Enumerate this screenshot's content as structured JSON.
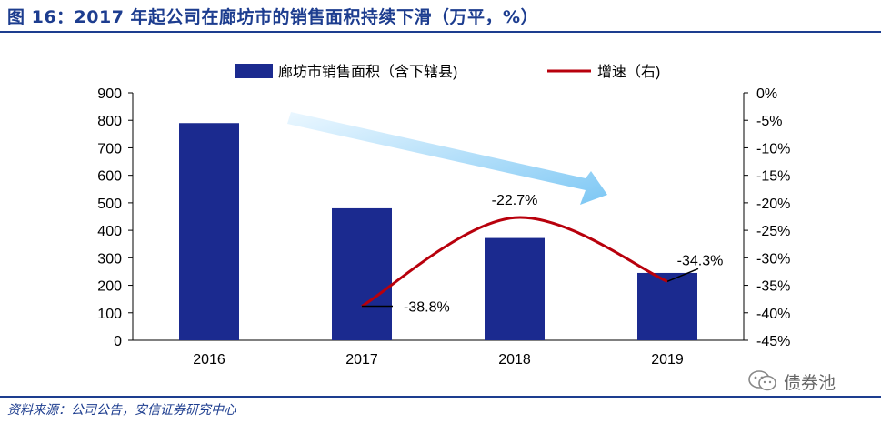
{
  "title": "图 16：2017 年起公司在廊坊市的销售面积持续下滑（万平，%）",
  "source": "资料来源：公司公告，安信证券研究中心",
  "watermark": {
    "text": "债券池",
    "icon": "wechat-icon"
  },
  "colors": {
    "bar": "#1b2a8f",
    "line": "#b8000c",
    "trend_arrow": "#8fcff5",
    "title": "#1d3d8f"
  },
  "chart_data": {
    "type": "bar",
    "categories": [
      "2016",
      "2017",
      "2018",
      "2019"
    ],
    "series": [
      {
        "name": "廊坊市销售面积（含下辖县)",
        "type": "bar",
        "axis": "left",
        "values": [
          790,
          480,
          372,
          245
        ]
      },
      {
        "name": "增速（右)",
        "type": "line",
        "axis": "right",
        "values": [
          null,
          -38.8,
          -22.7,
          -34.3
        ]
      }
    ],
    "data_labels": [
      "-38.8%",
      "-22.7%",
      "-34.3%"
    ],
    "y_left": {
      "min": 0,
      "max": 900,
      "ticks": [
        "0",
        "100",
        "200",
        "300",
        "400",
        "500",
        "600",
        "700",
        "800",
        "900"
      ]
    },
    "y_right": {
      "min": -45,
      "max": 0,
      "ticks": [
        "0%",
        "-5%",
        "-10%",
        "-15%",
        "-20%",
        "-25%",
        "-30%",
        "-35%",
        "-40%",
        "-45%"
      ]
    },
    "legend": [
      "廊坊市销售面积（含下辖县)",
      "增速（右)"
    ],
    "legend_position": "top",
    "grid": false,
    "annotation": "downward trend arrow"
  }
}
